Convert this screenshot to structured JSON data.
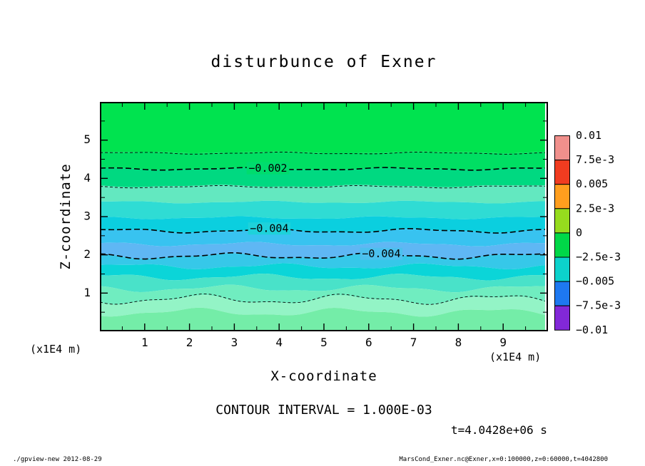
{
  "units": {
    "left": "(x1E4 m)",
    "right": "(x1E4 m)"
  },
  "annotations": {
    "contour_interval_text": "CONTOUR INTERVAL = 1.000E-03",
    "time_text": "t=4.0428e+06 s"
  },
  "footer": {
    "left": "./gpview-new  2012-08-29",
    "right": "MarsCond_Exner.nc@Exner,x=0:100000,z=0:60000,t=4042800"
  },
  "chart_data": {
    "type": "filled-contour",
    "title": "disturbunce of Exner",
    "xlabel": "X-coordinate",
    "ylabel": "Z-coordinate",
    "xlim": [
      0,
      10
    ],
    "ylim": [
      0,
      6
    ],
    "x_ticks": [
      1,
      2,
      3,
      4,
      5,
      6,
      7,
      8,
      9
    ],
    "y_ticks": [
      1,
      2,
      3,
      4,
      5
    ],
    "axis_unit": "(x1E4 m)",
    "contour_interval": 0.001,
    "grid": false,
    "legend_position": "right-colorbar",
    "tone_boundaries": [
      {
        "z": 6.0,
        "amp": 0.0,
        "phase": 0.0,
        "cycles": 3
      },
      {
        "z": 4.68,
        "amp": 1.2,
        "phase": 0.4,
        "cycles": 3
      },
      {
        "z": 4.25,
        "amp": 1.5,
        "phase": 1.8,
        "cycles": 3
      },
      {
        "z": 3.8,
        "amp": 1.6,
        "phase": 3.0,
        "cycles": 3
      },
      {
        "z": 3.38,
        "amp": 1.8,
        "phase": 0.9,
        "cycles": 3
      },
      {
        "z": 2.97,
        "amp": 2.0,
        "phase": 2.2,
        "cycles": 3
      },
      {
        "z": 2.63,
        "amp": 2.8,
        "phase": 0.8,
        "cycles": 3
      },
      {
        "z": 2.28,
        "amp": 3.0,
        "phase": 1.6,
        "cycles": 3
      },
      {
        "z": 1.97,
        "amp": 3.8,
        "phase": 2.5,
        "cycles": 3
      },
      {
        "z": 1.7,
        "amp": 4.0,
        "phase": 0.3,
        "cycles": 3
      },
      {
        "z": 1.42,
        "amp": 4.5,
        "phase": 1.2,
        "cycles": 3
      },
      {
        "z": 1.12,
        "amp": 5.0,
        "phase": 2.6,
        "cycles": 3
      },
      {
        "z": 0.82,
        "amp": 6.5,
        "phase": 3.7,
        "cycles": 3
      },
      {
        "z": 0.5,
        "amp": 6.0,
        "phase": 3.9,
        "cycles": 3
      },
      {
        "z": 0.0,
        "amp": 0.0,
        "phase": 0.0,
        "cycles": 3
      }
    ],
    "tone_colors": [
      "#00e34f",
      "#00df63",
      "#00d981",
      "#63e8c0",
      "#2fdcd4",
      "#0bcfdf",
      "#38c3f0",
      "#5fb7f4",
      "#36c8e9",
      "#0bd5d8",
      "#49e2c9",
      "#70edc0",
      "#93f4c6",
      "#74eda8"
    ],
    "contour_lines": [
      {
        "value": -0.001,
        "z": 4.66,
        "amp": 1.4,
        "phase": 0.4,
        "cycles": 3,
        "width": 0.9,
        "dash": "4,3"
      },
      {
        "value": -0.002,
        "z": 4.25,
        "amp": 1.8,
        "phase": 1.8,
        "cycles": 3,
        "width": 1.6,
        "dash": "8,4",
        "label": "−0.002",
        "label_x": 3.75,
        "label_bg": "#00dc6e"
      },
      {
        "value": -0.003,
        "z": 3.78,
        "amp": 1.6,
        "phase": 3.0,
        "cycles": 3,
        "width": 0.9,
        "dash": "4,3"
      },
      {
        "value": -0.004,
        "z": 2.63,
        "amp": 3.0,
        "phase": 0.8,
        "cycles": 3,
        "width": 1.6,
        "dash": "8,4",
        "label": "−0.004",
        "label_x": 3.78,
        "label_bg": "#1ed2da"
      },
      {
        "value": -0.004,
        "z": 1.97,
        "amp": 4.2,
        "phase": 2.5,
        "cycles": 3,
        "width": 1.6,
        "dash": "8,4",
        "label": "−0.004",
        "label_x": 6.28,
        "label_bg": "#4cc0ee"
      },
      {
        "value": -0.001,
        "z": 0.84,
        "amp": 7.0,
        "phase": 3.7,
        "cycles": 3,
        "width": 0.9,
        "dash": "4,3"
      }
    ],
    "colorbar": {
      "labels": [
        "0.01",
        "7.5e-3",
        "0.005",
        "2.5e-3",
        "0",
        "−2.5e-3",
        "−0.005",
        "−7.5e-3",
        "−0.01"
      ],
      "colors": [
        "#f0908c",
        "#f03c20",
        "#ff9e1e",
        "#96dc1e",
        "#00d848",
        "#0cd2cc",
        "#1e78f0",
        "#8228d8"
      ]
    }
  }
}
